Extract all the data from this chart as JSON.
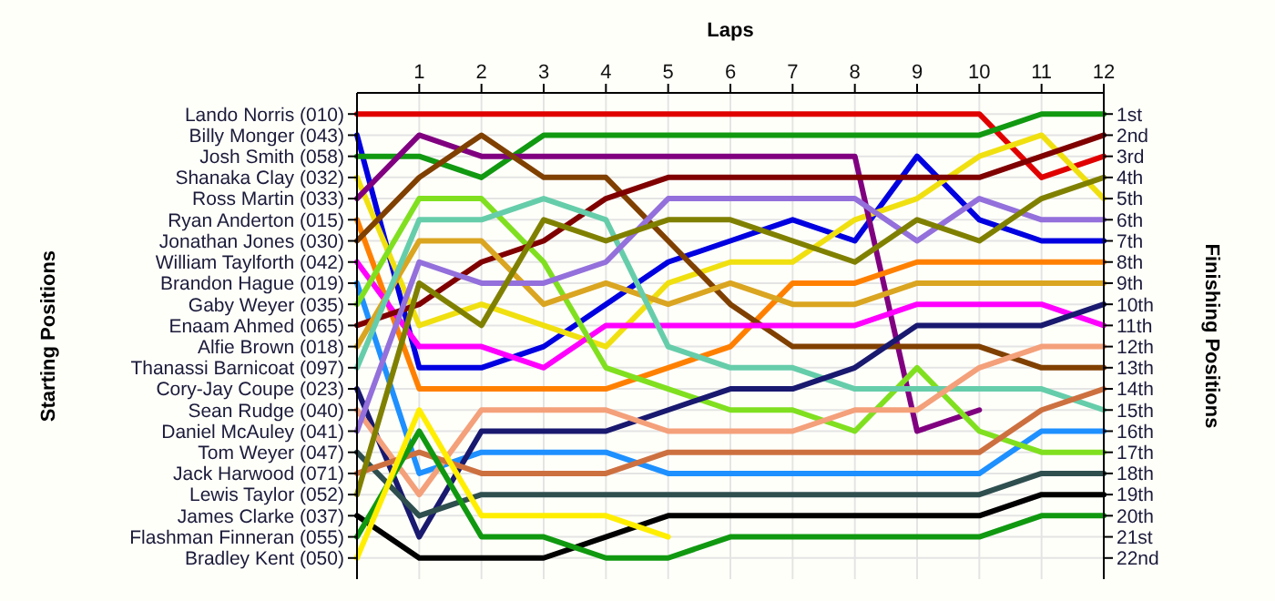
{
  "chart_data": {
    "type": "line",
    "xlabel": "Laps",
    "ylabel": "Finishing Positions",
    "annotations": [
      "Starting Positions",
      "Lando Norris (010)",
      "Billy Monger (043)",
      "Josh Smith (058)",
      "Shanaka Clay (032)",
      "Ross Martin (033)",
      "Ryan Anderton (015)",
      "Jonathan Jones (030)",
      "William Taylforth (042)",
      "Brandon Hague (019)",
      "Gaby Weyer (035)",
      "Enaam Ahmed (065)",
      "Alfie Brown (018)",
      "Thanassi Barnicoat (097)",
      "Cory-Jay Coupe (023)",
      "Sean Rudge (040)",
      "Daniel McAuley (041)",
      "Tom Weyer (047)",
      "Jack Harwood (071)",
      "Lewis Taylor (052)",
      "James Clarke (037)",
      "Flashman Finneran (055)",
      "Bradley Kent (050)"
    ],
    "x": [
      0,
      1,
      2,
      3,
      4,
      5,
      6,
      7,
      8,
      9,
      10,
      11,
      12
    ],
    "xlim": [
      0,
      12
    ],
    "xticks": [
      1,
      2,
      3,
      4,
      5,
      6,
      7,
      8,
      9,
      10,
      11,
      12
    ],
    "ylim": [
      23,
      0
    ],
    "yticks": [
      {
        "value": 1,
        "label": "1st"
      },
      {
        "value": 2,
        "label": "2nd"
      },
      {
        "value": 3,
        "label": "3rd"
      },
      {
        "value": 4,
        "label": "4th"
      },
      {
        "value": 5,
        "label": "5th"
      },
      {
        "value": 6,
        "label": "6th"
      },
      {
        "value": 7,
        "label": "7th"
      },
      {
        "value": 8,
        "label": "8th"
      },
      {
        "value": 9,
        "label": "9th"
      },
      {
        "value": 10,
        "label": "10th"
      },
      {
        "value": 11,
        "label": "11th"
      },
      {
        "value": 12,
        "label": "12th"
      },
      {
        "value": 13,
        "label": "13th"
      },
      {
        "value": 14,
        "label": "14th"
      },
      {
        "value": 15,
        "label": "15th"
      },
      {
        "value": 16,
        "label": "16th"
      },
      {
        "value": 17,
        "label": "17th"
      },
      {
        "value": 18,
        "label": "18th"
      },
      {
        "value": 19,
        "label": "19th"
      },
      {
        "value": 20,
        "label": "20th"
      },
      {
        "value": 21,
        "label": "21st"
      },
      {
        "value": 22,
        "label": "22nd"
      }
    ],
    "grid": true,
    "marker": "none",
    "line_style": "solid",
    "series": [
      {
        "color": "#e00000",
        "values": [
          1,
          1,
          1,
          1,
          1,
          1,
          1,
          1,
          1,
          1,
          1,
          4,
          3
        ]
      },
      {
        "color": "#0000e0",
        "values": [
          2,
          13,
          13,
          12,
          10,
          8,
          7,
          6,
          7,
          3,
          6,
          7,
          7
        ]
      },
      {
        "color": "#119911",
        "values": [
          3,
          3,
          4,
          2,
          2,
          2,
          2,
          2,
          2,
          2,
          2,
          1,
          1
        ]
      },
      {
        "color": "#f0e010",
        "values": [
          4,
          11,
          10,
          11,
          12,
          9,
          8,
          8,
          6,
          5,
          3,
          2,
          5
        ]
      },
      {
        "color": "#800080",
        "values": [
          5,
          2,
          3,
          3,
          3,
          3,
          3,
          3,
          3,
          16,
          15,
          null,
          null
        ]
      },
      {
        "color": "#ff8000",
        "values": [
          6,
          14,
          14,
          14,
          14,
          13,
          12,
          9,
          9,
          8,
          8,
          8,
          8
        ]
      },
      {
        "color": "#804000",
        "values": [
          7,
          4,
          2,
          4,
          4,
          7,
          10,
          12,
          12,
          12,
          12,
          13,
          13
        ]
      },
      {
        "color": "#ff00ff",
        "values": [
          8,
          12,
          12,
          13,
          11,
          11,
          11,
          11,
          11,
          10,
          10,
          10,
          11
        ]
      },
      {
        "color": "#1e90ff",
        "values": [
          9,
          18,
          17,
          17,
          17,
          18,
          18,
          18,
          18,
          18,
          18,
          16,
          16
        ]
      },
      {
        "color": "#80e020",
        "values": [
          10,
          5,
          5,
          8,
          13,
          14,
          15,
          15,
          16,
          13,
          16,
          17,
          17
        ]
      },
      {
        "color": "#800000",
        "values": [
          11,
          10,
          8,
          7,
          5,
          4,
          4,
          4,
          4,
          4,
          4,
          3,
          2
        ]
      },
      {
        "color": "#daa520",
        "values": [
          12,
          7,
          7,
          10,
          9,
          10,
          9,
          10,
          10,
          9,
          9,
          9,
          9
        ]
      },
      {
        "color": "#66cdaa",
        "values": [
          13,
          6,
          6,
          5,
          6,
          12,
          13,
          13,
          14,
          14,
          14,
          14,
          15
        ]
      },
      {
        "color": "#191970",
        "values": [
          14,
          21,
          16,
          16,
          16,
          15,
          14,
          14,
          13,
          11,
          11,
          11,
          10
        ]
      },
      {
        "color": "#f4a07a",
        "values": [
          15,
          19,
          15,
          15,
          15,
          16,
          16,
          16,
          15,
          15,
          13,
          12,
          12
        ]
      },
      {
        "color": "#9370db",
        "values": [
          16,
          8,
          9,
          9,
          8,
          5,
          5,
          5,
          5,
          7,
          5,
          6,
          6
        ]
      },
      {
        "color": "#2f4f4f",
        "values": [
          17,
          20,
          19,
          19,
          19,
          19,
          19,
          19,
          19,
          19,
          19,
          18,
          18
        ]
      },
      {
        "color": "#cd7040",
        "values": [
          18,
          17,
          18,
          18,
          18,
          17,
          17,
          17,
          17,
          17,
          17,
          15,
          14
        ]
      },
      {
        "color": "#808000",
        "values": [
          19,
          9,
          11,
          6,
          7,
          6,
          6,
          7,
          8,
          6,
          7,
          5,
          4
        ]
      },
      {
        "color": "#000000",
        "values": [
          20,
          22,
          22,
          22,
          21,
          20,
          20,
          20,
          20,
          20,
          20,
          19,
          19
        ]
      },
      {
        "color": "#109910",
        "values": [
          21,
          16,
          21,
          21,
          22,
          22,
          21,
          21,
          21,
          21,
          21,
          20,
          20
        ]
      },
      {
        "color": "#ffee00",
        "values": [
          22,
          15,
          20,
          20,
          20,
          21,
          null,
          null,
          null,
          null,
          null,
          null,
          null
        ]
      }
    ]
  }
}
